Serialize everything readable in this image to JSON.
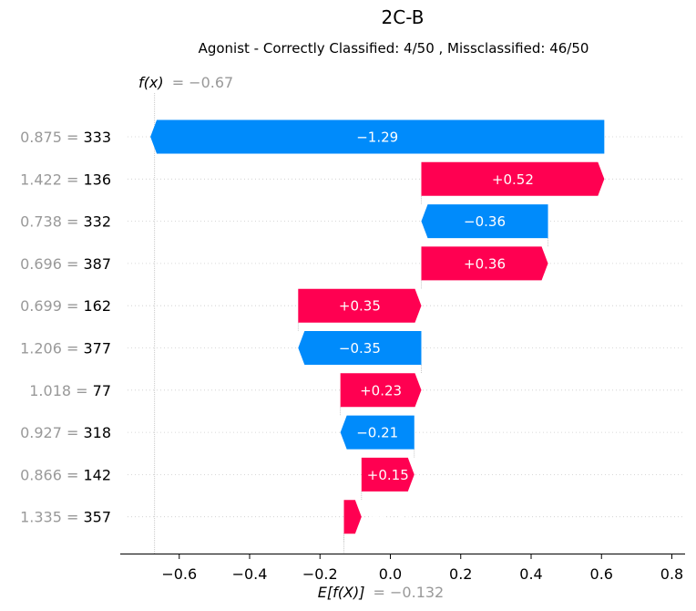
{
  "chart_data": {
    "type": "bar",
    "title": "2C-B",
    "subtitle": "Agonist - Correctly Classified: 4/50 , Missclassified: 46/50",
    "fx_label": "f(x)",
    "fx_value": "= −0.67",
    "fx": -0.67,
    "efx_label": "E[f(X)]",
    "efx_value": "= −0.132",
    "base_value": -0.132,
    "xlim": [
      -0.76,
      0.8
    ],
    "xticks": [
      -0.6,
      -0.4,
      -0.2,
      0.0,
      0.2,
      0.4,
      0.6,
      0.8
    ],
    "xtick_labels": [
      "−0.6",
      "−0.4",
      "−0.2",
      "0.0",
      "0.2",
      "0.4",
      "0.6",
      "0.8"
    ],
    "positive_color": "#ff0051",
    "negative_color": "#008bfb",
    "features": [
      {
        "value": "0.875 =",
        "name": "333",
        "contribution": -1.29,
        "label": "−1.29"
      },
      {
        "value": "1.422 =",
        "name": "136",
        "contribution": 0.52,
        "label": "+0.52"
      },
      {
        "value": "0.738 =",
        "name": "332",
        "contribution": -0.36,
        "label": "−0.36"
      },
      {
        "value": "0.696 =",
        "name": "387",
        "contribution": 0.36,
        "label": "+0.36"
      },
      {
        "value": "0.699 =",
        "name": "162",
        "contribution": 0.35,
        "label": "+0.35"
      },
      {
        "value": "1.206 =",
        "name": "377",
        "contribution": -0.35,
        "label": "−0.35"
      },
      {
        "value": "1.018 =",
        "name": "77",
        "contribution": 0.23,
        "label": "+0.23"
      },
      {
        "value": "0.927 =",
        "name": "318",
        "contribution": -0.21,
        "label": "−0.21"
      },
      {
        "value": "0.866 =",
        "name": "142",
        "contribution": 0.15,
        "label": "+0.15"
      },
      {
        "value": "1.335 =",
        "name": "357",
        "contribution": 0.05,
        "label": "+0.05"
      }
    ]
  }
}
